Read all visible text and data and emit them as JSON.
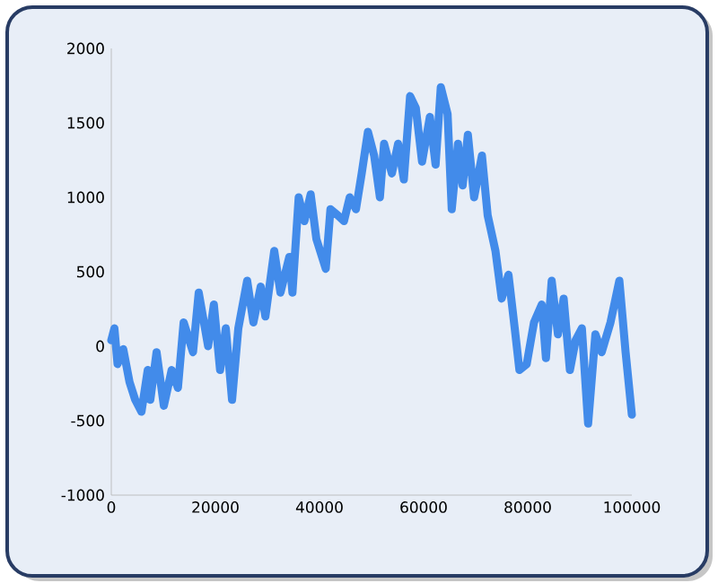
{
  "chart_data": {
    "type": "line",
    "color": "#428bea",
    "line_style": "solid",
    "grid": false,
    "x": [
      0,
      600,
      1200,
      2300,
      3500,
      4600,
      5800,
      7000,
      7500,
      8700,
      10100,
      11600,
      12800,
      13900,
      15700,
      16800,
      18600,
      19700,
      20900,
      22000,
      23200,
      24400,
      26100,
      27300,
      28700,
      29600,
      31300,
      32500,
      34200,
      34800,
      36000,
      37100,
      38300,
      39400,
      41200,
      42100,
      43500,
      44700,
      45800,
      47000,
      48100,
      49300,
      50500,
      51600,
      52400,
      53900,
      55100,
      56200,
      57400,
      58500,
      59700,
      61200,
      62300,
      63300,
      64600,
      65400,
      66600,
      67500,
      68500,
      69700,
      71200,
      72300,
      73800,
      75000,
      76300,
      77500,
      78400,
      79800,
      81200,
      82700,
      83500,
      84600,
      85800,
      86900,
      88100,
      89200,
      90400,
      91600,
      93000,
      94200,
      95900,
      97600,
      98800,
      100000
    ],
    "values": [
      40,
      120,
      -120,
      -20,
      -240,
      -360,
      -440,
      -160,
      -360,
      -40,
      -400,
      -160,
      -280,
      160,
      -40,
      360,
      0,
      280,
      -160,
      120,
      -360,
      120,
      440,
      160,
      400,
      200,
      640,
      360,
      600,
      360,
      1000,
      840,
      1020,
      720,
      520,
      920,
      880,
      840,
      1000,
      920,
      1160,
      1440,
      1280,
      1000,
      1360,
      1160,
      1360,
      1120,
      1680,
      1600,
      1240,
      1540,
      1220,
      1740,
      1560,
      920,
      1360,
      1080,
      1420,
      1000,
      1280,
      880,
      640,
      320,
      480,
      120,
      -160,
      -120,
      160,
      280,
      -80,
      440,
      80,
      320,
      -160,
      40,
      120,
      -520,
      80,
      -40,
      160,
      440,
      -40,
      -460
    ],
    "xlim": [
      0,
      100000
    ],
    "ylim": [
      -1000,
      2000
    ],
    "xticks": [
      0,
      20000,
      40000,
      60000,
      80000,
      100000
    ],
    "yticks": [
      -1000,
      -500,
      0,
      500,
      1000,
      1500,
      2000
    ]
  }
}
